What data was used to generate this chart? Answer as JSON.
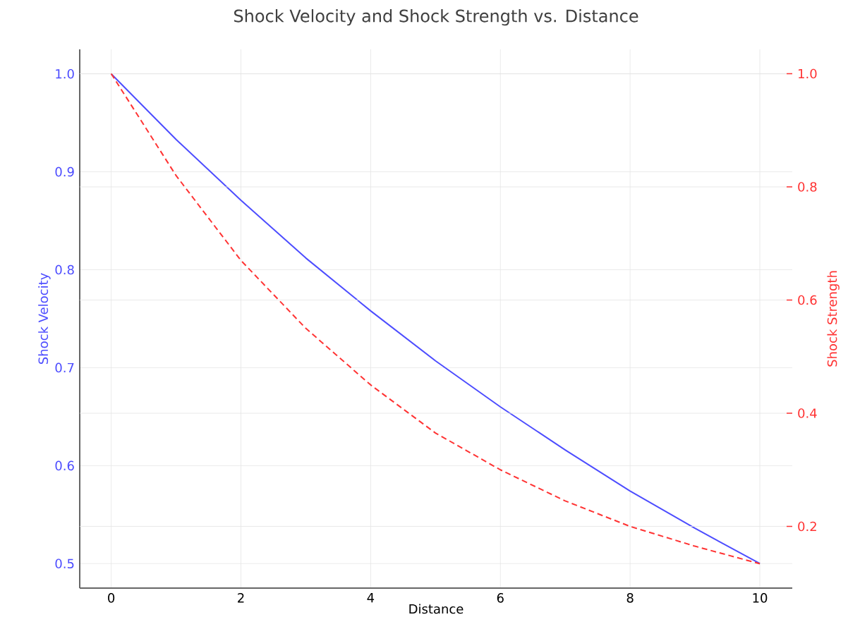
{
  "chart_data": {
    "type": "line",
    "title": "Shock Velocity and Shock Strength vs. Distance",
    "xlabel": "Distance",
    "ylabel": "Shock Velocity",
    "y2label": "Shock Strength",
    "x": [
      0,
      1,
      2,
      3,
      4,
      5,
      6,
      7,
      8,
      9,
      10
    ],
    "series": [
      {
        "color": "#4d4dff",
        "line_style": "solid",
        "values": [
          1.0,
          0.933,
          0.871,
          0.812,
          0.758,
          0.707,
          0.66,
          0.616,
          0.574,
          0.536,
          0.5
        ]
      },
      {
        "color": "#ff3333",
        "line_style": "dashed",
        "axis": "y2",
        "values": [
          1.0,
          0.82,
          0.67,
          0.55,
          0.45,
          0.365,
          0.3,
          0.245,
          0.2,
          0.165,
          0.134
        ]
      }
    ],
    "xlim": [
      -0.485,
      10.5
    ],
    "xticks": [
      0,
      2,
      4,
      6,
      8,
      10
    ],
    "ylim": [
      0.475,
      1.025
    ],
    "yticks": [
      0.5,
      0.6,
      0.7,
      0.8,
      0.9,
      {
        "value": 1,
        "label": "1.0"
      }
    ],
    "y2lim": [
      0.091,
      1.043
    ],
    "y2ticks": [
      0.2,
      0.4,
      0.6,
      0.8,
      {
        "value": 1,
        "label": "1.0"
      }
    ],
    "grid": true,
    "marker": "none"
  }
}
